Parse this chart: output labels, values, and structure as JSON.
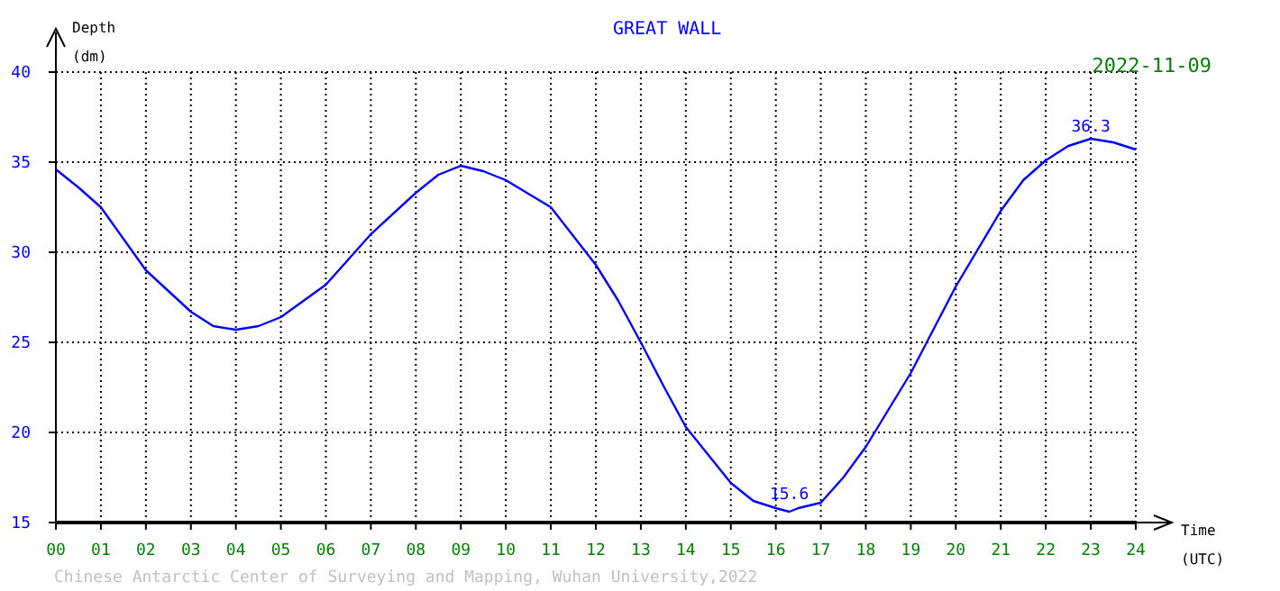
{
  "chart_data": {
    "type": "line",
    "title": "GREAT WALL",
    "subtitle": "2022-11-09",
    "xlabel": "Time (UTC)",
    "ylabel": "Depth (dm)",
    "series": [
      {
        "color": "#0000ff",
        "x": [
          0,
          0.5,
          1,
          2,
          3,
          3.5,
          4,
          4.5,
          5,
          6,
          7,
          8,
          8.5,
          9,
          9.5,
          10,
          11,
          12,
          12.5,
          13,
          13.5,
          14,
          15,
          15.5,
          16,
          16.3,
          16.5,
          17,
          17.5,
          18,
          19,
          19.5,
          20,
          21,
          21.5,
          22,
          22.5,
          23,
          23.5,
          24
        ],
        "values": [
          34.6,
          33.6,
          32.5,
          29.0,
          26.7,
          25.9,
          25.7,
          25.9,
          26.4,
          28.2,
          31.0,
          33.3,
          34.3,
          34.8,
          34.5,
          34.0,
          32.5,
          29.3,
          27.3,
          25.0,
          22.6,
          20.3,
          17.2,
          16.2,
          15.8,
          15.6,
          15.8,
          16.1,
          17.5,
          19.2,
          23.3,
          25.7,
          28.1,
          32.3,
          34.0,
          35.1,
          35.9,
          36.3,
          36.1,
          35.7
        ]
      }
    ],
    "xlim": [
      0,
      24
    ],
    "ylim": [
      15,
      40
    ],
    "xticks": [
      {
        "value": 0,
        "label": "00"
      },
      {
        "value": 1,
        "label": "01"
      },
      {
        "value": 2,
        "label": "02"
      },
      {
        "value": 3,
        "label": "03"
      },
      {
        "value": 4,
        "label": "04"
      },
      {
        "value": 5,
        "label": "05"
      },
      {
        "value": 6,
        "label": "06"
      },
      {
        "value": 7,
        "label": "07"
      },
      {
        "value": 8,
        "label": "08"
      },
      {
        "value": 9,
        "label": "09"
      },
      10,
      11,
      12,
      13,
      14,
      15,
      16,
      17,
      18,
      19,
      20,
      21,
      22,
      23,
      24
    ],
    "yticks": [
      15,
      20,
      25,
      30,
      35,
      40
    ],
    "grid": true,
    "line_style": "solid",
    "marker": "none",
    "annotations": [
      {
        "text": "36.3",
        "x": 23,
        "y": 36.3
      },
      {
        "text": "15.6",
        "x": 16.3,
        "y": 15.6
      },
      "Chinese Antarctic Center of Surveying and Mapping, Wuhan University,2022"
    ]
  }
}
